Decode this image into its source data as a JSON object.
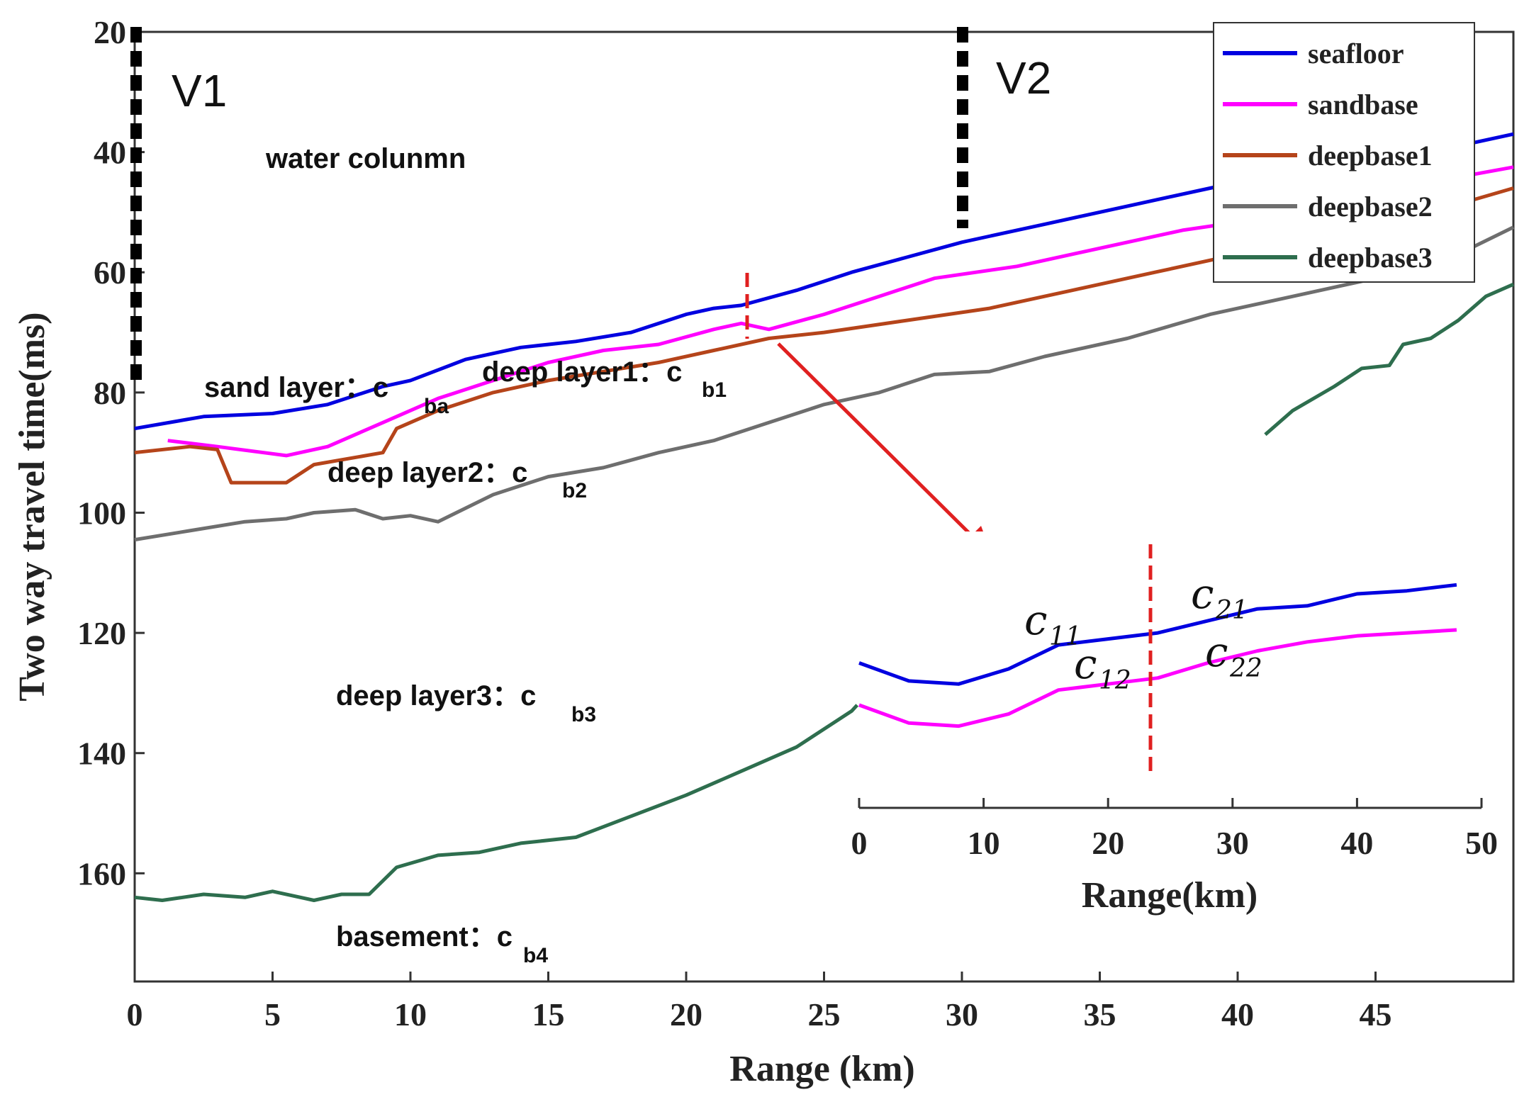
{
  "chart_data": [
    {
      "type": "line",
      "xlabel": "Range (km)",
      "ylabel": "Two way travel time(ms)",
      "xlim": [
        0,
        50
      ],
      "ylim": [
        20,
        178
      ],
      "y_reversed": true,
      "xticks": [
        0,
        5,
        10,
        15,
        20,
        25,
        30,
        35,
        40,
        45
      ],
      "yticks": [
        20,
        40,
        60,
        80,
        100,
        120,
        140,
        160
      ],
      "grid": false,
      "legend": "top-right",
      "series": [
        {
          "name": "seafloor",
          "color": "#0000e0",
          "points": [
            [
              0,
              86
            ],
            [
              2.5,
              84
            ],
            [
              5,
              83.5
            ],
            [
              7,
              82
            ],
            [
              9,
              79
            ],
            [
              10,
              78
            ],
            [
              12,
              74.5
            ],
            [
              14,
              72.5
            ],
            [
              16,
              71.5
            ],
            [
              18,
              70
            ],
            [
              20,
              67
            ],
            [
              21,
              66
            ],
            [
              22,
              65.5
            ],
            [
              24,
              63
            ],
            [
              26,
              60
            ],
            [
              28,
              57.5
            ],
            [
              30,
              55
            ],
            [
              33,
              52
            ],
            [
              36,
              49
            ],
            [
              39,
              46
            ],
            [
              42,
              43
            ],
            [
              45,
              41
            ],
            [
              48,
              39
            ],
            [
              50,
              37
            ]
          ]
        },
        {
          "name": "sandbase",
          "color": "#ff00ff",
          "points": [
            [
              1.2,
              88
            ],
            [
              3,
              89
            ],
            [
              5.5,
              90.5
            ],
            [
              7,
              89
            ],
            [
              9,
              85
            ],
            [
              11,
              81
            ],
            [
              13,
              78
            ],
            [
              15,
              75
            ],
            [
              17,
              73
            ],
            [
              19,
              72
            ],
            [
              21,
              69.5
            ],
            [
              22,
              68.5
            ],
            [
              23,
              69.5
            ],
            [
              25,
              67
            ],
            [
              27,
              64
            ],
            [
              29,
              61
            ],
            [
              32,
              59
            ],
            [
              35,
              56
            ],
            [
              38,
              53
            ],
            [
              41,
              51
            ],
            [
              44,
              48
            ],
            [
              47,
              45
            ],
            [
              50,
              42.5
            ]
          ]
        },
        {
          "name": "deepbase1",
          "color": "#b5441a",
          "points": [
            [
              0,
              90
            ],
            [
              2,
              89
            ],
            [
              3,
              89.5
            ],
            [
              3.5,
              95
            ],
            [
              5.5,
              95
            ],
            [
              6.5,
              92
            ],
            [
              9,
              90
            ],
            [
              9.5,
              86
            ],
            [
              11,
              83
            ],
            [
              13,
              80
            ],
            [
              15,
              78
            ],
            [
              17,
              76.5
            ],
            [
              19,
              75
            ],
            [
              21,
              73
            ],
            [
              23,
              71
            ],
            [
              25,
              70
            ],
            [
              28,
              68
            ],
            [
              31,
              66
            ],
            [
              34,
              63
            ],
            [
              37,
              60
            ],
            [
              40,
              57
            ],
            [
              43,
              54
            ],
            [
              47,
              50
            ],
            [
              50,
              46
            ]
          ]
        },
        {
          "name": "deepbase2",
          "color": "#6e6e6e",
          "points": [
            [
              0,
              104.5
            ],
            [
              2,
              103
            ],
            [
              4,
              101.5
            ],
            [
              5.5,
              101
            ],
            [
              6.5,
              100
            ],
            [
              8,
              99.5
            ],
            [
              9,
              101
            ],
            [
              10,
              100.5
            ],
            [
              11,
              101.5
            ],
            [
              13,
              97
            ],
            [
              15,
              94
            ],
            [
              17,
              92.5
            ],
            [
              19,
              90
            ],
            [
              21,
              88
            ],
            [
              23,
              85
            ],
            [
              25,
              82
            ],
            [
              27,
              80
            ],
            [
              29,
              77
            ],
            [
              31,
              76.5
            ],
            [
              33,
              74
            ],
            [
              36,
              71
            ],
            [
              39,
              67
            ],
            [
              42,
              64
            ],
            [
              45,
              61
            ],
            [
              48,
              57
            ],
            [
              50,
              52.5
            ]
          ]
        },
        {
          "name": "deepbase3",
          "color": "#2e6e4e",
          "points": [
            [
              0,
              164
            ],
            [
              1,
              164.5
            ],
            [
              2.5,
              163.5
            ],
            [
              4,
              164
            ],
            [
              5,
              163
            ],
            [
              6.5,
              164.5
            ],
            [
              7.5,
              163.5
            ],
            [
              8.5,
              163.5
            ],
            [
              9.5,
              159
            ],
            [
              11,
              157
            ],
            [
              12.5,
              156.5
            ],
            [
              14,
              155
            ],
            [
              16,
              154
            ],
            [
              18,
              150.5
            ],
            [
              20,
              147
            ],
            [
              22,
              143
            ],
            [
              24,
              139
            ],
            [
              26,
              133
            ],
            [
              26.2,
              132
            ]
          ]
        },
        {
          "name": "deepbase3",
          "color": "#2e6e4e",
          "points": [
            [
              41,
              87
            ],
            [
              42,
              83
            ],
            [
              43.5,
              79
            ],
            [
              44.5,
              76
            ],
            [
              45.5,
              75.5
            ],
            [
              46,
              72
            ],
            [
              47,
              71
            ],
            [
              48,
              68
            ],
            [
              49,
              64
            ],
            [
              50,
              62
            ]
          ]
        }
      ]
    },
    {
      "type": "line",
      "xlabel": "Range(km)",
      "xlim": [
        0,
        50
      ],
      "xticks": [
        0,
        10,
        20,
        30,
        40,
        50
      ],
      "series": [
        {
          "color": "#0000e0",
          "values": [
            [
              0,
              125
            ],
            [
              4,
              128
            ],
            [
              8,
              128.5
            ],
            [
              12,
              126
            ],
            [
              16,
              122
            ],
            [
              20,
              121
            ],
            [
              24,
              120
            ],
            [
              28,
              118
            ],
            [
              32,
              116
            ],
            [
              36,
              115.5
            ],
            [
              40,
              113.5
            ],
            [
              44,
              113
            ],
            [
              48,
              112
            ]
          ]
        },
        {
          "color": "#ff00ff",
          "values": [
            [
              0,
              132
            ],
            [
              4,
              135
            ],
            [
              8,
              135.5
            ],
            [
              12,
              133.5
            ],
            [
              16,
              129.5
            ],
            [
              20,
              128.5
            ],
            [
              24,
              127.5
            ],
            [
              28,
              125
            ],
            [
              32,
              123
            ],
            [
              36,
              121.5
            ],
            [
              40,
              120.5
            ],
            [
              44,
              120
            ],
            [
              48,
              119.5
            ]
          ]
        }
      ]
    }
  ],
  "annotations": {
    "v1": "V1",
    "v2": "V2",
    "water": "water colunmn",
    "sand_layer": "sand layer：c",
    "sand_sub": "ba",
    "deep1": "deep layer1：c",
    "deep1_sub": "b1",
    "deep2": "deep layer2：c",
    "deep2_sub": "b2",
    "deep3": "deep layer3：c",
    "deep3_sub": "b3",
    "basement": "basement：c",
    "basement_sub": "b4",
    "c11": "c",
    "c11_sub": "11",
    "c12": "c",
    "c12_sub": "12",
    "c21": "c",
    "c21_sub": "21",
    "c22": "c",
    "c22_sub": "22"
  }
}
